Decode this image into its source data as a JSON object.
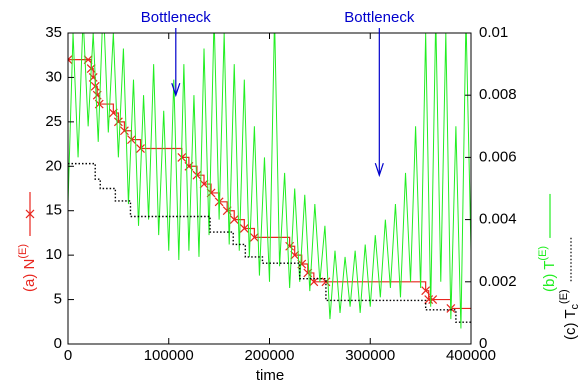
{
  "chart_data": {
    "type": "line",
    "xlabel": "time",
    "xlim": [
      0,
      400000
    ],
    "xticks": [
      0,
      100000,
      200000,
      300000,
      400000
    ],
    "ylim": [
      0,
      35
    ],
    "yticks": [
      0,
      5,
      10,
      15,
      20,
      25,
      30,
      35
    ],
    "y2lim": [
      0,
      0.01
    ],
    "y2ticks": [
      0,
      0.002,
      0.004,
      0.006,
      0.008,
      0.01
    ],
    "annotations": [
      {
        "text": "Bottleneck",
        "x": 107000,
        "y": 28,
        "color": "#0000cc"
      },
      {
        "text": "Bottleneck",
        "x": 309000,
        "y": 19,
        "color": "#0000cc"
      }
    ],
    "series": [
      {
        "name": "(a) N",
        "name_sup": "(E)",
        "color": "#e8261f",
        "style": "step-marker",
        "x": [
          0,
          20000,
          23000,
          25000,
          27000,
          29000,
          31000,
          45000,
          50000,
          56000,
          63000,
          72000,
          113000,
          120000,
          128000,
          135000,
          142000,
          150000,
          158000,
          165000,
          175000,
          185000,
          220000,
          225000,
          232000,
          238000,
          244000,
          256000,
          355000,
          358000,
          362000,
          380000
        ],
        "values": [
          32,
          32,
          31,
          30,
          29,
          28,
          27,
          26,
          25,
          24,
          23,
          22,
          21,
          20,
          19,
          18,
          17,
          16,
          15,
          14,
          13,
          12,
          11,
          10,
          9,
          8,
          7,
          7,
          6,
          5,
          5,
          4
        ]
      },
      {
        "name": "(b) T",
        "name_sup": "(E)",
        "color": "#22ee22",
        "style": "line",
        "axis": "y2",
        "x": [
          0,
          5000,
          10000,
          15000,
          20000,
          25000,
          30000,
          35000,
          40000,
          45000,
          50000,
          55000,
          60000,
          65000,
          70000,
          75000,
          80000,
          85000,
          90000,
          95000,
          100000,
          105000,
          110000,
          115000,
          120000,
          125000,
          130000,
          135000,
          140000,
          145000,
          150000,
          155000,
          160000,
          165000,
          170000,
          175000,
          180000,
          185000,
          190000,
          195000,
          200000,
          205000,
          210000,
          215000,
          220000,
          225000,
          230000,
          235000,
          240000,
          245000,
          250000,
          255000,
          260000,
          265000,
          270000,
          275000,
          280000,
          285000,
          290000,
          295000,
          300000,
          305000,
          310000,
          315000,
          320000,
          325000,
          330000,
          335000,
          340000,
          345000,
          350000,
          355000,
          360000,
          365000,
          370000,
          375000,
          380000,
          385000,
          390000,
          395000,
          400000
        ],
        "values": [
          0.0045,
          0.01,
          0.006,
          0.0105,
          0.007,
          0.01,
          0.0065,
          0.011,
          0.0068,
          0.01,
          0.006,
          0.0095,
          0.0045,
          0.0085,
          0.0038,
          0.008,
          0.004,
          0.009,
          0.0035,
          0.0075,
          0.003,
          0.0085,
          0.0027,
          0.009,
          0.003,
          0.008,
          0.0028,
          0.0095,
          0.0035,
          0.0105,
          0.004,
          0.01,
          0.0032,
          0.009,
          0.003,
          0.0085,
          0.0028,
          0.007,
          0.0022,
          0.006,
          0.002,
          0.0105,
          0.0025,
          0.0055,
          0.0018,
          0.005,
          0.002,
          0.0048,
          0.0017,
          0.0045,
          0.002,
          0.0038,
          0.0008,
          0.003,
          0.001,
          0.0028,
          0.0012,
          0.003,
          0.001,
          0.0032,
          0.0012,
          0.0035,
          0.0015,
          0.004,
          0.0018,
          0.0045,
          0.0015,
          0.0055,
          0.002,
          0.007,
          0.0018,
          0.01,
          0.0012,
          0.0105,
          0.002,
          0.01,
          0.0008,
          0.007,
          0.0005,
          0.0105,
          0.003
        ]
      },
      {
        "name": "(c) T",
        "name_sub": "c",
        "name_sup": "(E)",
        "color": "#000000",
        "style": "step-dotted",
        "axis": "y2",
        "x": [
          0,
          27000,
          32000,
          47000,
          62000,
          141000,
          164000,
          176000,
          193000,
          230000,
          256000,
          355000,
          385000,
          400000
        ],
        "values": [
          0.0058,
          0.0053,
          0.005,
          0.0046,
          0.0041,
          0.0036,
          0.0032,
          0.0028,
          0.0026,
          0.0021,
          0.0014,
          0.0011,
          0.0007,
          0.0007
        ]
      }
    ]
  }
}
